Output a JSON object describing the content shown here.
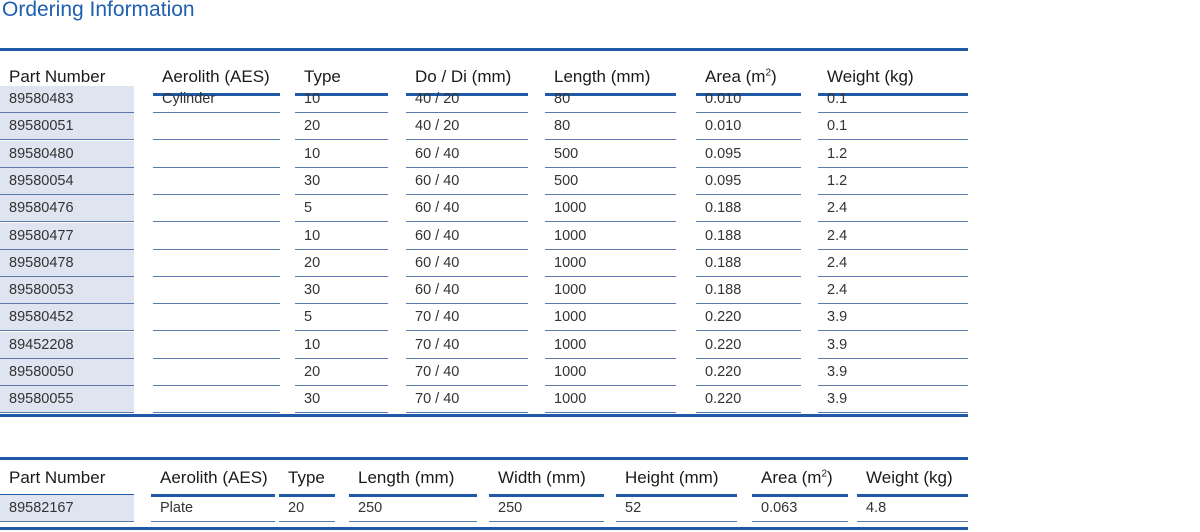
{
  "title": "Ordering Information",
  "table1": {
    "headers": {
      "part_number": "Part Number",
      "aerolith": "Aerolith (AES)",
      "type": "Type",
      "do_di": "Do / Di (mm)",
      "length": "Length (mm)",
      "area": "Area (m",
      "area_sup": "2",
      "area_close": ")",
      "weight": "Weight (kg)"
    },
    "rows": [
      [
        "89580483",
        "Cylinder",
        "10",
        "40 / 20",
        "80",
        "0.010",
        "0.1"
      ],
      [
        "89580051",
        "",
        "20",
        "40 / 20",
        "80",
        "0.010",
        "0.1"
      ],
      [
        "89580480",
        "",
        "10",
        "60 / 40",
        "500",
        "0.095",
        "1.2"
      ],
      [
        "89580054",
        "",
        "30",
        "60 / 40",
        "500",
        "0.095",
        "1.2"
      ],
      [
        "89580476",
        "",
        "5",
        "60 / 40",
        "1000",
        "0.188",
        "2.4"
      ],
      [
        "89580477",
        "",
        "10",
        "60 / 40",
        "1000",
        "0.188",
        "2.4"
      ],
      [
        "89580478",
        "",
        "20",
        "60 / 40",
        "1000",
        "0.188",
        "2.4"
      ],
      [
        "89580053",
        "",
        "30",
        "60 / 40",
        "1000",
        "0.188",
        "2.4"
      ],
      [
        "89580452",
        "",
        "5",
        "70 / 40",
        "1000",
        "0.220",
        "3.9"
      ],
      [
        "89452208",
        "",
        "10",
        "70 / 40",
        "1000",
        "0.220",
        "3.9"
      ],
      [
        "89580050",
        "",
        "20",
        "70 / 40",
        "1000",
        "0.220",
        "3.9"
      ],
      [
        "89580055",
        "",
        "30",
        "70 / 40",
        "1000",
        "0.220",
        "3.9"
      ]
    ]
  },
  "table2": {
    "headers": {
      "part_number": "Part Number",
      "aerolith": "Aerolith (AES)",
      "type": "Type",
      "length": "Length (mm)",
      "width": "Width (mm)",
      "height": "Height (mm)",
      "area": "Area (m",
      "area_sup": "2",
      "area_close": ")",
      "weight": "Weight (kg)"
    },
    "rows": [
      [
        "89582167",
        "Plate",
        "20",
        "250",
        "250",
        "52",
        "0.063",
        "4.8"
      ]
    ]
  },
  "colors": {
    "accent": "#1e5aa8",
    "title": "#1f5fb0",
    "shade": "#dfe4f1"
  }
}
